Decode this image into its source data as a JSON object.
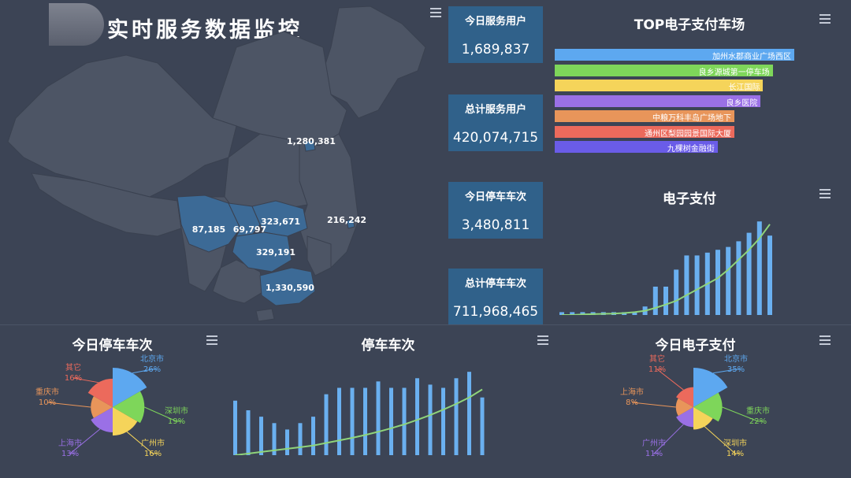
{
  "header": {
    "title": "实时服务数据监控"
  },
  "map": {
    "labels": [
      {
        "name": "beijing",
        "value": "1,280,381"
      },
      {
        "name": "sichuan",
        "value": "87,185"
      },
      {
        "name": "chongqing",
        "value": "69,797"
      },
      {
        "name": "hubei",
        "value": "323,671"
      },
      {
        "name": "shanghai",
        "value": "216,242"
      },
      {
        "name": "guizhou",
        "value": "329,191"
      },
      {
        "name": "guangdong",
        "value": "1,330,590"
      }
    ]
  },
  "stats": [
    {
      "label": "今日服务用户",
      "value": "1,689,837"
    },
    {
      "label": "总计服务用户",
      "value": "420,074,715"
    },
    {
      "label": "今日停车车次",
      "value": "3,480,811"
    },
    {
      "label": "总计停车车次",
      "value": "711,968,465"
    }
  ],
  "top_parking": {
    "title": "TOP电子支付车场",
    "items": [
      {
        "label": "加州水郡商业广场西区",
        "value": 100,
        "color": "#5da8f0"
      },
      {
        "label": "良乡源城第一停车场",
        "value": 91,
        "color": "#7ed65a"
      },
      {
        "label": "长江国际",
        "value": 87,
        "color": "#f5d45a"
      },
      {
        "label": "良乡医院",
        "value": 86,
        "color": "#9a70e6"
      },
      {
        "label": "中粮万科丰岛广场地下",
        "value": 75,
        "color": "#e8955a"
      },
      {
        "label": "通州区梨园园景国际大厦",
        "value": 75,
        "color": "#ec6a5c"
      },
      {
        "label": "九棵树金融街",
        "value": 68,
        "color": "#6a5ce8"
      }
    ]
  },
  "epay_chart": {
    "title": "电子支付",
    "chart_data": {
      "type": "bar",
      "bars": [
        1,
        1,
        1,
        1,
        1,
        1,
        1,
        1,
        3,
        10,
        10,
        16,
        21,
        21,
        22,
        23,
        24,
        26,
        29,
        33,
        28
      ],
      "line": [
        0,
        0,
        0.2,
        0.3,
        0.4,
        0.5,
        0.7,
        1,
        1.5,
        2.5,
        3.7,
        5,
        7,
        9,
        11,
        13,
        16,
        19.5,
        23,
        27,
        32
      ],
      "ylim": [
        0,
        35
      ],
      "bar_color": "#6ab0f0",
      "line_color": "#8fd47a"
    }
  },
  "today_parking_pie": {
    "title": "今日停车车次",
    "chart_data": {
      "type": "pie",
      "slices": [
        {
          "name": "北京市",
          "percent": "26%",
          "value": 26,
          "color": "#5da8f0"
        },
        {
          "name": "深圳市",
          "percent": "19%",
          "value": 19,
          "color": "#7ed65a"
        },
        {
          "name": "广州市",
          "percent": "16%",
          "value": 16,
          "color": "#f5d45a"
        },
        {
          "name": "上海市",
          "percent": "13%",
          "value": 13,
          "color": "#9a70e6"
        },
        {
          "name": "重庆市",
          "percent": "10%",
          "value": 10,
          "color": "#e8955a"
        },
        {
          "name": "其它",
          "percent": "16%",
          "value": 16,
          "color": "#ec6a5c"
        }
      ]
    }
  },
  "parking_chart": {
    "title": "停车车次",
    "chart_data": {
      "type": "bar",
      "bars": [
        17,
        14,
        12,
        10,
        8,
        10,
        12,
        19,
        21,
        21,
        21,
        23,
        21,
        21,
        24,
        22,
        21,
        24,
        26,
        18
      ],
      "line": [
        0,
        0.5,
        1,
        1.5,
        2,
        2.5,
        3,
        3.8,
        4.6,
        5.4,
        6.3,
        7.3,
        8.4,
        9.6,
        11,
        12.5,
        14.2,
        16,
        18,
        20.5
      ],
      "ylim": [
        0,
        28
      ],
      "bar_color": "#6ab0f0",
      "line_color": "#8fd47a"
    }
  },
  "today_epay_pie": {
    "title": "今日电子支付",
    "chart_data": {
      "type": "pie",
      "slices": [
        {
          "name": "北京市",
          "percent": "35%",
          "value": 35,
          "color": "#5da8f0"
        },
        {
          "name": "重庆市",
          "percent": "22%",
          "value": 22,
          "color": "#7ed65a"
        },
        {
          "name": "深圳市",
          "percent": "14%",
          "value": 14,
          "color": "#f5d45a"
        },
        {
          "name": "广州市",
          "percent": "11%",
          "value": 11,
          "color": "#9a70e6"
        },
        {
          "name": "上海市",
          "percent": "8%",
          "value": 8,
          "color": "#e8955a"
        },
        {
          "name": "其它",
          "percent": "11%",
          "value": 11,
          "color": "#ec6a5c"
        }
      ]
    }
  }
}
